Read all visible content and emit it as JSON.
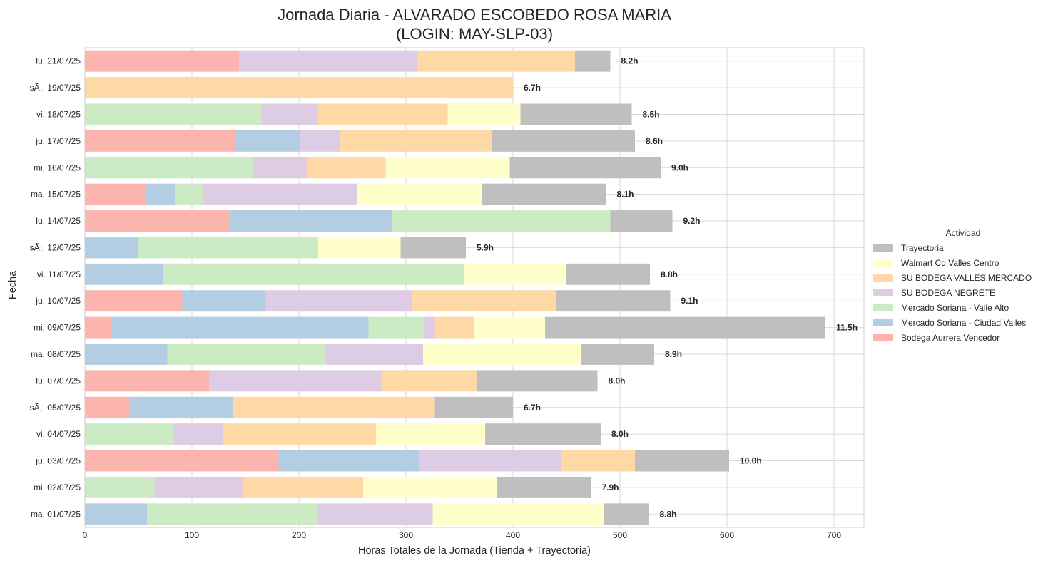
{
  "chart_data": {
    "type": "bar",
    "orientation": "horizontal",
    "stacked": true,
    "title": "Jornada Diaria - ALVARADO ESCOBEDO ROSA MARIA",
    "subtitle": "(LOGIN: MAY-SLP-03)",
    "xlabel": "Horas Totales de la Jornada (Tienda + Trayectoria)",
    "ylabel": "Fecha",
    "xlim": [
      0,
      728
    ],
    "xticks": [
      0,
      100,
      200,
      300,
      400,
      500,
      600,
      700
    ],
    "grid": true,
    "legend": {
      "title": "Actividad",
      "placement": "right"
    },
    "categories": [
      "lu. 21/07/25",
      "sÃ¡. 19/07/25",
      "vi. 18/07/25",
      "ju. 17/07/25",
      "mi. 16/07/25",
      "ma. 15/07/25",
      "lu. 14/07/25",
      "sÃ¡. 12/07/25",
      "vi. 11/07/25",
      "ju. 10/07/25",
      "mi. 09/07/25",
      "ma. 08/07/25",
      "lu. 07/07/25",
      "sÃ¡. 05/07/25",
      "vi. 04/07/25",
      "ju. 03/07/25",
      "mi. 02/07/25",
      "ma. 01/07/25"
    ],
    "bar_labels": [
      "8.2h",
      "6.7h",
      "8.5h",
      "8.6h",
      "9.0h",
      "8.1h",
      "9.2h",
      "5.9h",
      "8.8h",
      "9.1h",
      "11.5h",
      "8.9h",
      "8.0h",
      "6.7h",
      "8.0h",
      "10.0h",
      "7.9h",
      "8.8h"
    ],
    "series": [
      {
        "name": "Bodega Aurrera Vencedor",
        "color": "#fbb4ae",
        "values": [
          144,
          0,
          0,
          140,
          0,
          57,
          136,
          0,
          0,
          91,
          24,
          0,
          116,
          42,
          0,
          181,
          0,
          0
        ]
      },
      {
        "name": "Mercado Soriana - Ciudad Valles",
        "color": "#b3cde3",
        "values": [
          0,
          0,
          0,
          61,
          0,
          27,
          151,
          50,
          73,
          78,
          241,
          77,
          0,
          96,
          0,
          131,
          0,
          58
        ]
      },
      {
        "name": "Mercado Soriana - Valle Alto",
        "color": "#ccebc5",
        "values": [
          0,
          0,
          165,
          0,
          157,
          27,
          204,
          168,
          281,
          0,
          52,
          148,
          0,
          0,
          83,
          0,
          65,
          160
        ]
      },
      {
        "name": "SU BODEGA NEGRETE",
        "color": "#decbe4",
        "values": [
          167,
          0,
          53,
          37,
          50,
          143,
          0,
          0,
          0,
          137,
          10,
          91,
          161,
          0,
          46,
          133,
          82,
          107
        ]
      },
      {
        "name": "SU BODEGA VALLES MERCADO",
        "color": "#fed9a6",
        "values": [
          147,
          400,
          121,
          142,
          74,
          0,
          0,
          0,
          0,
          134,
          37,
          0,
          89,
          189,
          143,
          69,
          113,
          0
        ]
      },
      {
        "name": "Walmart Cd Valles Centro",
        "color": "#ffffcc",
        "values": [
          0,
          0,
          68,
          0,
          116,
          117,
          0,
          77,
          96,
          0,
          66,
          148,
          0,
          0,
          102,
          0,
          125,
          160
        ]
      },
      {
        "name": "Trayectoria",
        "color": "#bfbfbf",
        "values": [
          33,
          0,
          104,
          134,
          141,
          116,
          58,
          61,
          78,
          107,
          262,
          68,
          113,
          73,
          108,
          88,
          88,
          42
        ]
      }
    ]
  }
}
